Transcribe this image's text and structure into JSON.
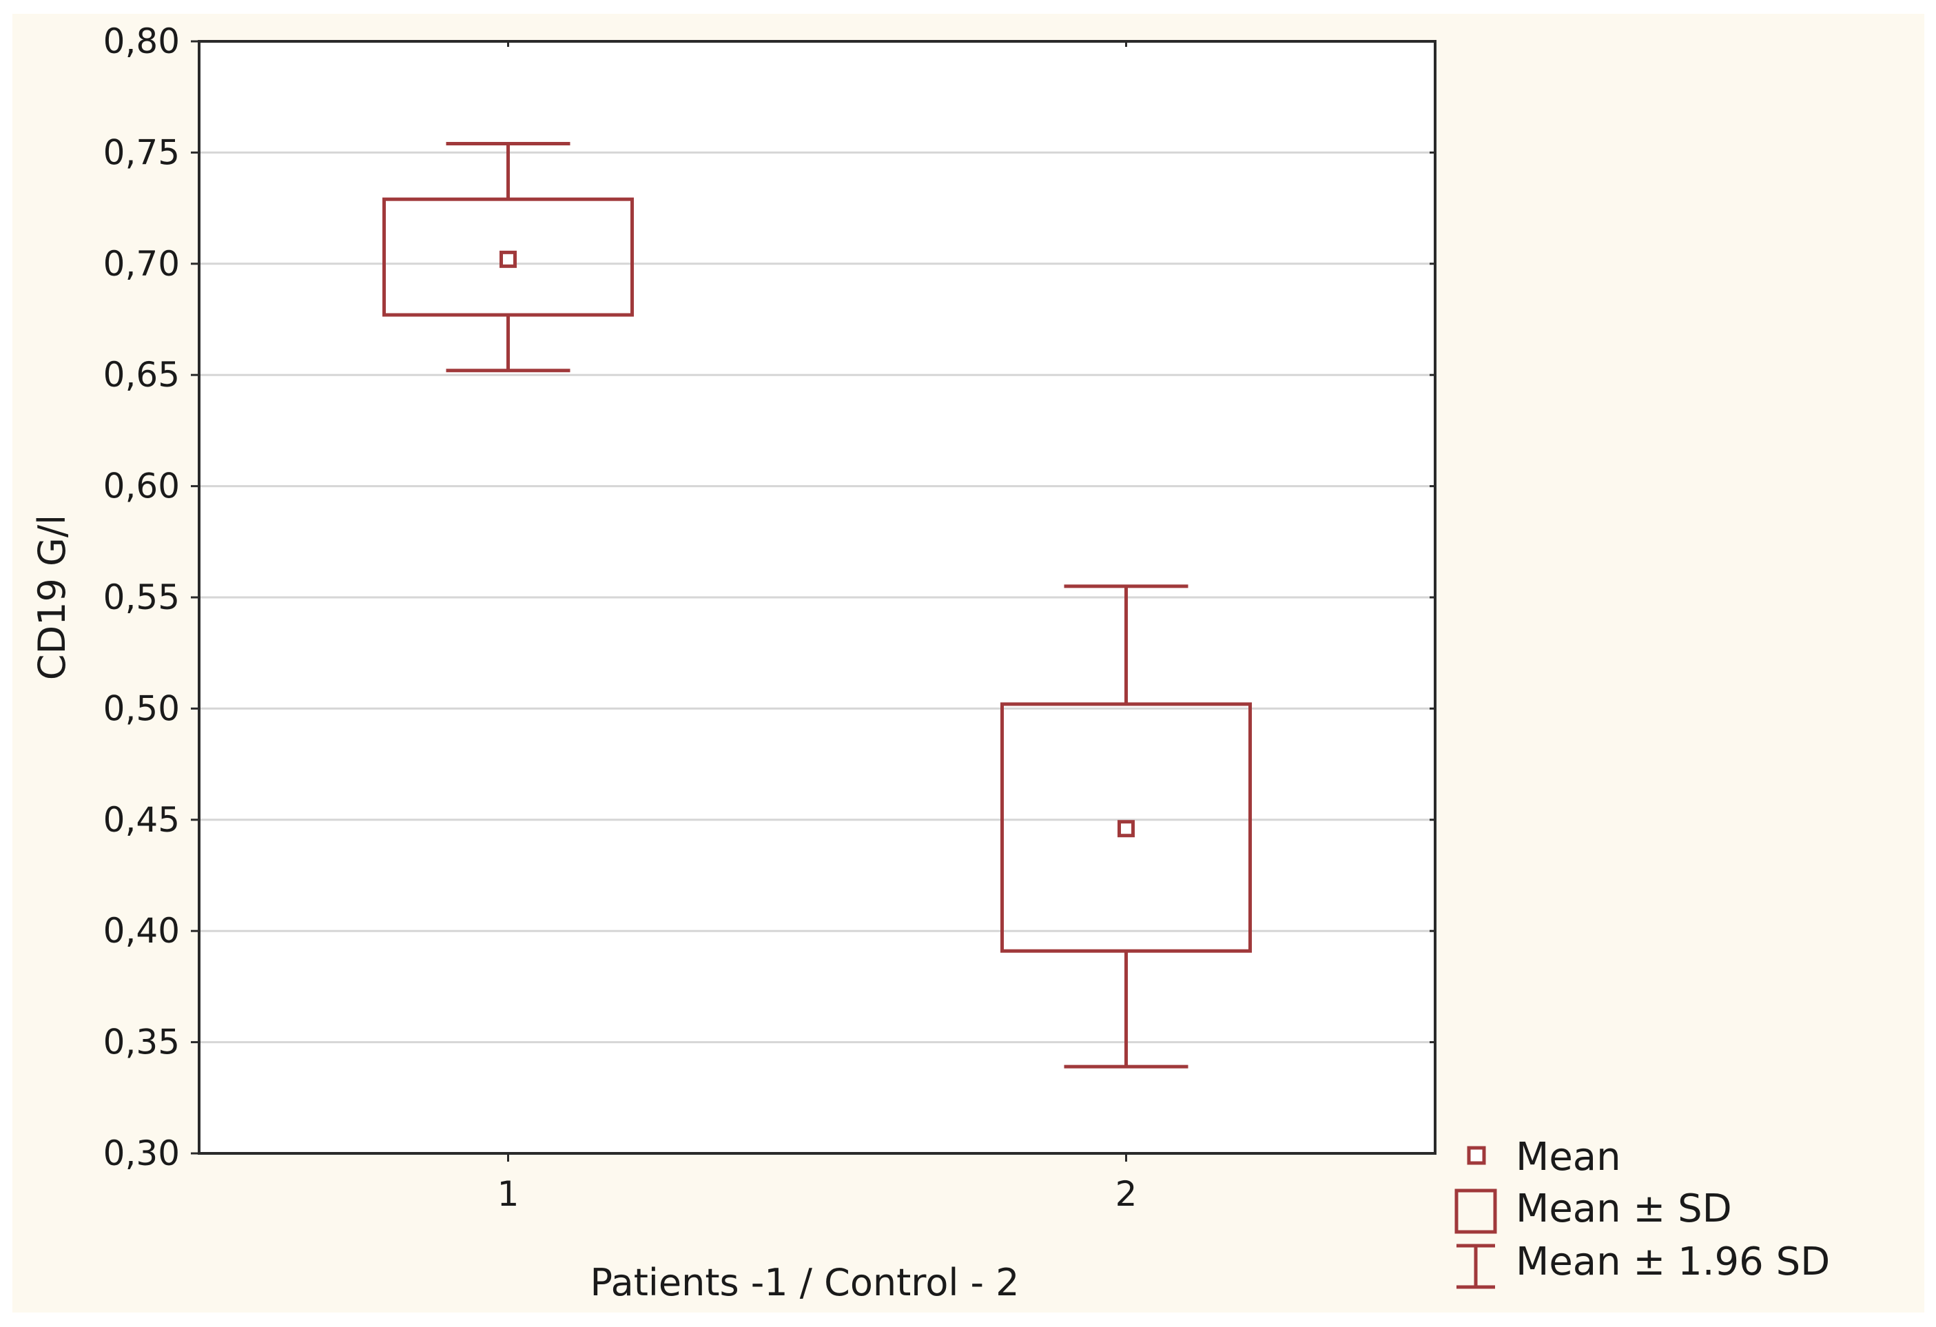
{
  "chart_data": {
    "type": "box",
    "title": "",
    "xlabel": "Patients -1 / Control - 2",
    "ylabel": "CD19 G/l",
    "categories": [
      "1",
      "2"
    ],
    "ylim": [
      0.3,
      0.8
    ],
    "yticks": [
      0.3,
      0.35,
      0.4,
      0.45,
      0.5,
      0.55,
      0.6,
      0.65,
      0.7,
      0.75,
      0.8
    ],
    "ytick_labels": [
      "0,30",
      "0,35",
      "0,40",
      "0,45",
      "0,50",
      "0,55",
      "0,60",
      "0,65",
      "0,70",
      "0,75",
      "0,80"
    ],
    "grid": true,
    "series": [
      {
        "name": "1",
        "mean": 0.702,
        "sd_low": 0.677,
        "sd_high": 0.729,
        "ci_low": 0.652,
        "ci_high": 0.754
      },
      {
        "name": "2",
        "mean": 0.446,
        "sd_low": 0.391,
        "sd_high": 0.502,
        "ci_low": 0.339,
        "ci_high": 0.555
      }
    ],
    "legend": {
      "position": "bottom-right",
      "items": [
        "Mean",
        "Mean ± SD",
        "Mean ± 1.96 SD"
      ]
    }
  },
  "colors": {
    "mark": "#a0393b",
    "page_background": "#fdf9ef",
    "plot_background": "#ffffff",
    "grid": "#d6d6d6",
    "axis": "#2a2a2a"
  }
}
